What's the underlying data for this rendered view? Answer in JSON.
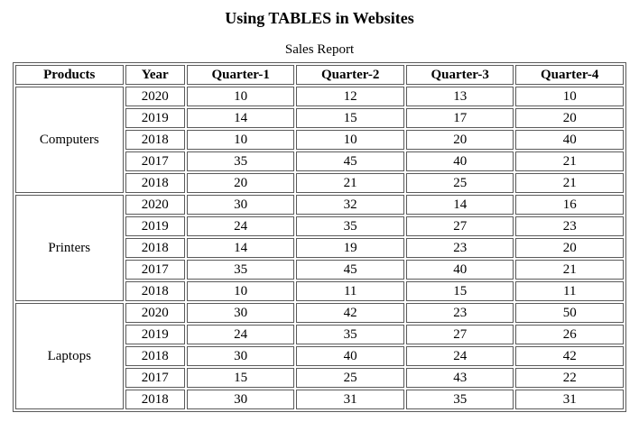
{
  "page": {
    "title": "Using TABLES in Websites"
  },
  "table": {
    "caption": "Sales Report",
    "headers": [
      "Products",
      "Year",
      "Quarter-1",
      "Quarter-2",
      "Quarter-3",
      "Quarter-4"
    ],
    "groups": [
      {
        "product": "Computers",
        "rows": [
          {
            "year": "2020",
            "values": [
              "10",
              "12",
              "13",
              "10"
            ]
          },
          {
            "year": "2019",
            "values": [
              "14",
              "15",
              "17",
              "20"
            ]
          },
          {
            "year": "2018",
            "values": [
              "10",
              "10",
              "20",
              "40"
            ]
          },
          {
            "year": "2017",
            "values": [
              "35",
              "45",
              "40",
              "21"
            ]
          },
          {
            "year": "2018",
            "values": [
              "20",
              "21",
              "25",
              "21"
            ]
          }
        ]
      },
      {
        "product": "Printers",
        "rows": [
          {
            "year": "2020",
            "values": [
              "30",
              "32",
              "14",
              "16"
            ]
          },
          {
            "year": "2019",
            "values": [
              "24",
              "35",
              "27",
              "23"
            ]
          },
          {
            "year": "2018",
            "values": [
              "14",
              "19",
              "23",
              "20"
            ]
          },
          {
            "year": "2017",
            "values": [
              "35",
              "45",
              "40",
              "21"
            ]
          },
          {
            "year": "2018",
            "values": [
              "10",
              "11",
              "15",
              "11"
            ]
          }
        ]
      },
      {
        "product": "Laptops",
        "rows": [
          {
            "year": "2020",
            "values": [
              "30",
              "42",
              "23",
              "50"
            ]
          },
          {
            "year": "2019",
            "values": [
              "24",
              "35",
              "27",
              "26"
            ]
          },
          {
            "year": "2018",
            "values": [
              "30",
              "40",
              "24",
              "42"
            ]
          },
          {
            "year": "2017",
            "values": [
              "15",
              "25",
              "43",
              "22"
            ]
          },
          {
            "year": "2018",
            "values": [
              "30",
              "31",
              "35",
              "31"
            ]
          }
        ]
      }
    ]
  }
}
